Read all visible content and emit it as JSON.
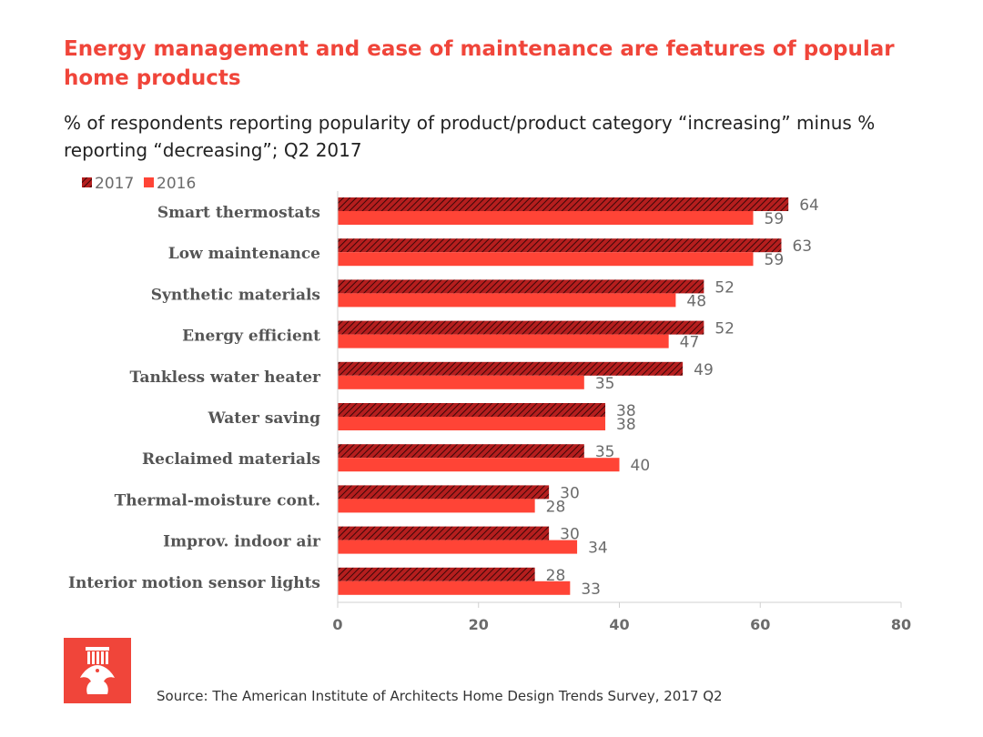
{
  "title": "Energy management and ease of maintenance are features of popular home products",
  "subtitle": "% of respondents reporting popularity of product/product category “increasing” minus % reporting “decreasing”; Q2 2017",
  "source": "Source: The American Institute of Architects Home Design Trends Survey, 2017 Q2",
  "logo_icon": "aia-eagle-logo-icon",
  "colors": {
    "accent": "#f0453a",
    "series_2017": "#b51e1e",
    "series_2016": "#ff4436",
    "axis_text": "#6b6b6b",
    "label_text": "#555555"
  },
  "chart_data": {
    "type": "bar",
    "orientation": "horizontal",
    "categories": [
      "Smart thermostats",
      "Low maintenance",
      "Synthetic materials",
      "Energy efficient",
      "Tankless water heater",
      "Water saving",
      "Reclaimed materials",
      "Thermal-moisture cont.",
      "Improv. indoor air",
      "Interior motion sensor lights"
    ],
    "series": [
      {
        "name": "2017",
        "pattern": "hatched",
        "color": "#b51e1e",
        "values": [
          64,
          63,
          52,
          52,
          49,
          38,
          35,
          30,
          30,
          28
        ]
      },
      {
        "name": "2016",
        "pattern": "solid",
        "color": "#ff4436",
        "values": [
          59,
          59,
          48,
          47,
          35,
          38,
          40,
          28,
          34,
          33
        ]
      }
    ],
    "xlim": [
      0,
      80
    ],
    "xticks": [
      "0",
      "20",
      "40",
      "60",
      "80"
    ],
    "legend_position": "top-left",
    "grid": false
  }
}
